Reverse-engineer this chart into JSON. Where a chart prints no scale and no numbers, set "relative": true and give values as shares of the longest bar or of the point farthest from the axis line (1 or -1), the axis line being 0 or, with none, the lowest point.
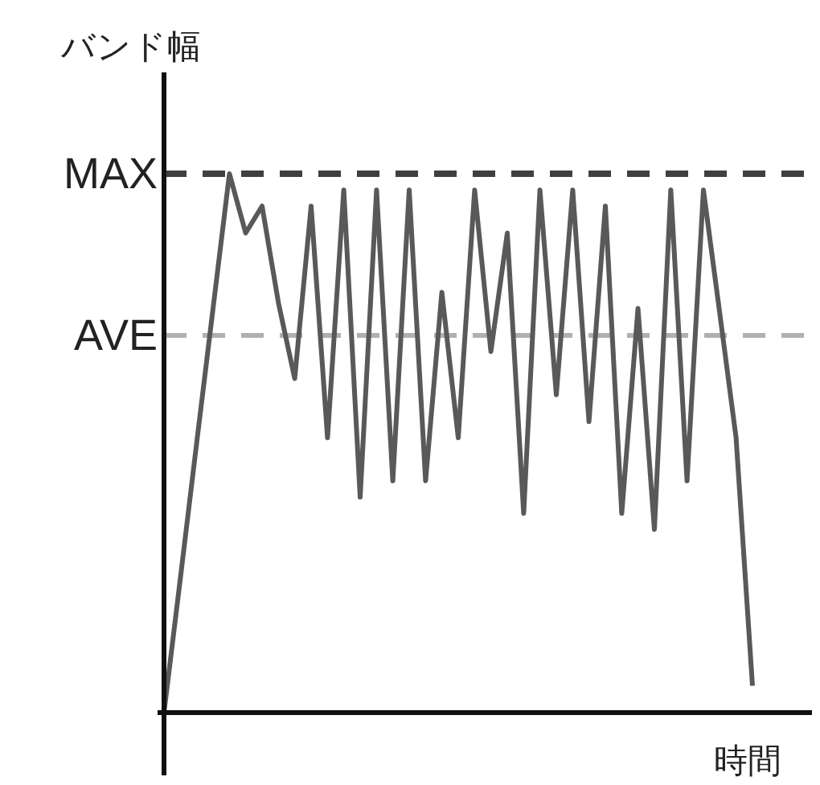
{
  "chart_data": {
    "type": "line",
    "ylabel": "バンド幅",
    "xlabel": "時間",
    "relative": true,
    "grid": false,
    "marker": "none",
    "line_style": "solid",
    "categories": [
      null,
      null,
      null,
      null,
      null,
      null,
      null,
      null,
      null,
      null,
      null,
      null,
      null,
      null,
      null,
      null,
      null,
      null,
      null,
      null,
      null,
      null,
      null,
      null,
      null,
      null,
      null,
      null,
      null,
      null,
      null,
      null,
      null,
      null,
      null,
      null,
      null
    ],
    "series": [
      {
        "color": "#595959",
        "values": [
          0,
          0.25,
          0.5,
          0.75,
          1,
          0.89,
          0.94,
          0.76,
          0.62,
          0.94,
          0.51,
          0.97,
          0.4,
          0.97,
          0.43,
          0.97,
          0.43,
          0.78,
          0.51,
          0.97,
          0.67,
          0.89,
          0.37,
          0.97,
          0.59,
          0.97,
          0.54,
          0.94,
          0.37,
          0.75,
          0.34,
          0.97,
          0.43,
          0.97,
          0.74,
          0.51,
          0.05
        ]
      }
    ],
    "ref_lines": [
      {
        "axis": "y",
        "value": 1,
        "label": "MAX",
        "color": "#404040",
        "line_style": "dashed"
      },
      {
        "axis": "y",
        "value": 0.7,
        "label": "AVE",
        "color": "#b0b0b0",
        "line_style": "dashed"
      }
    ]
  }
}
